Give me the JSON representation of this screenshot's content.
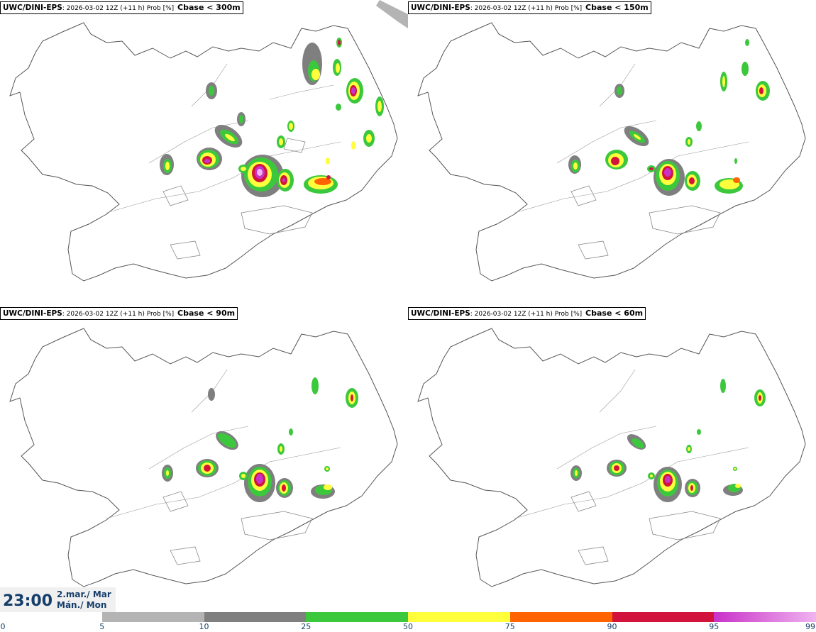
{
  "panels": [
    {
      "model": "UWC/DINI-EPS",
      "run": ": 2026-03-02 12Z (+11 h) Prob [%]",
      "var": "Cbase < 300m"
    },
    {
      "model": "UWC/DINI-EPS",
      "run": ": 2026-03-02 12Z (+11 h) Prob [%]",
      "var": "Cbase < 150m"
    },
    {
      "model": "UWC/DINI-EPS",
      "run": ": 2026-03-02 12Z (+11 h) Prob [%]",
      "var": "Cbase < 90m"
    },
    {
      "model": "UWC/DINI-EPS",
      "run": ": 2026-03-02 12Z (+11 h) Prob [%]",
      "var": "Cbase < 60m"
    }
  ],
  "time": "23:00",
  "date_line1": "2.mar./ Mar",
  "date_line2": "Mán./ Mon",
  "colorbar": {
    "ticks": [
      "0",
      "5",
      "10",
      "25",
      "50",
      "75",
      "90",
      "95",
      "99"
    ],
    "colors": [
      "#ffffff",
      "#b4b4b4",
      "#7f7f7f",
      "#3cc83c",
      "#ffff3c",
      "#ff6400",
      "#d2143c",
      "#c832c8",
      "#f0b4f0"
    ]
  }
}
